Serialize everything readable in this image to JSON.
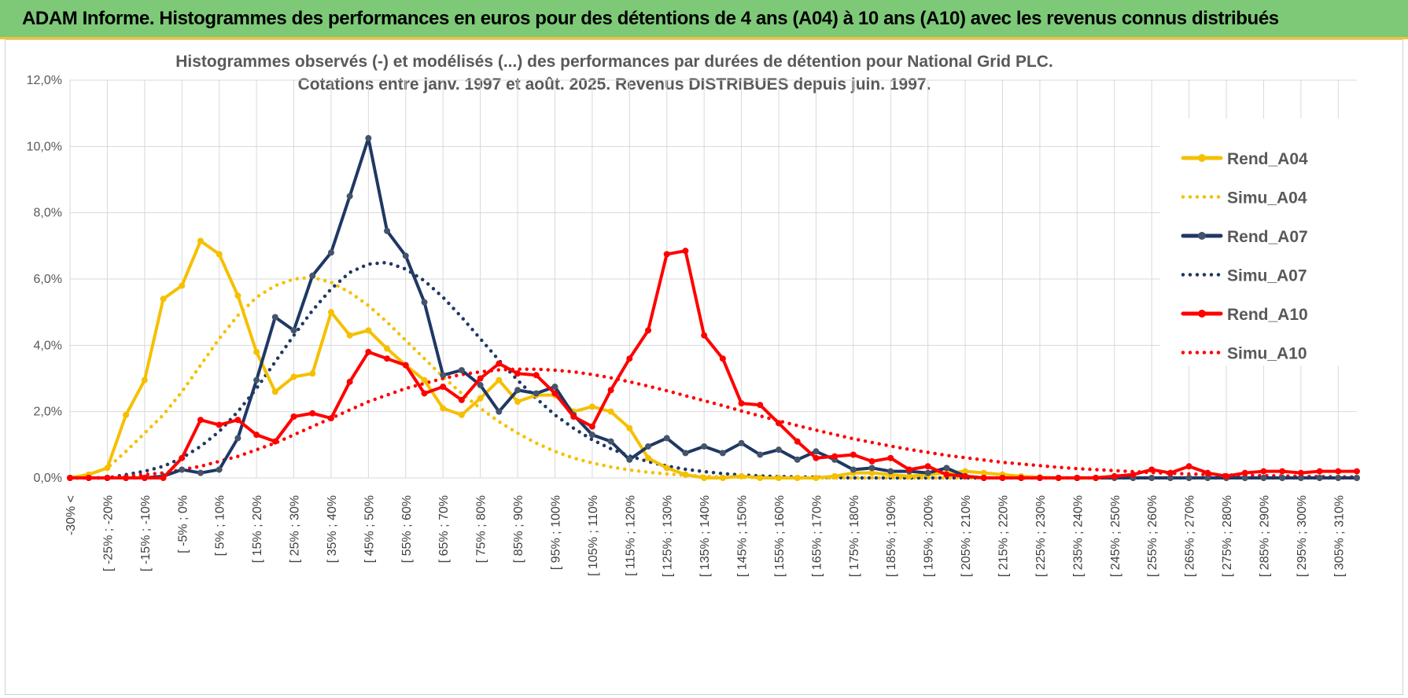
{
  "header": {
    "title": "ADAM Informe. Histogrammes des performances en euros pour des détentions de 4 ans (A04) à 10 ans (A10) avec les revenus connus distribués"
  },
  "chart_data": {
    "type": "line",
    "title": "Histogrammes observés (-) et modélisés (...) des performances par durées de détention pour National Grid PLC.",
    "subtitle": "Cotations entre janv. 1997 et août. 2025. Revenus DISTRIBUES depuis juin. 1997.",
    "xlabel": "",
    "ylabel": "",
    "ylim": [
      0,
      12
    ],
    "yticks": [
      0,
      2,
      4,
      6,
      8,
      10,
      12
    ],
    "ytick_labels": [
      "0,0%",
      "2,0%",
      "4,0%",
      "6,0%",
      "8,0%",
      "10,0%",
      "12,0%"
    ],
    "grid": true,
    "legend_position": "right",
    "x_tick_labels": [
      "-30% <",
      "[ -25% ; -20%",
      "[ -15% ; -10%",
      "[ -5% ; 0%",
      "[ 5% ; 10%",
      "[ 15% ; 20%",
      "[ 25% ; 30%",
      "[ 35% ; 40%",
      "[ 45% ; 50%",
      "[ 55% ; 60%",
      "[ 65% ; 70%",
      "[ 75% ; 80%",
      "[ 85% ; 90%",
      "[ 95% ; 100%",
      "[ 105% ; 110%",
      "[ 115% ; 120%",
      "[ 125% ; 130%",
      "[ 135% ; 140%",
      "[ 145% ; 150%",
      "[ 155% ; 160%",
      "[ 165% ; 170%",
      "[ 175% ; 180%",
      "[ 185% ; 190%",
      "[ 195% ; 200%",
      "[ 205% ; 210%",
      "[ 215% ; 220%",
      "[ 225% ; 230%",
      "[ 235% ; 240%",
      "[ 245% ; 250%",
      "[ 255% ; 260%",
      "[ 265% ; 270%",
      "[ 275% ; 280%",
      "[ 285% ; 290%",
      "[ 295% ; 300%",
      "[ 305% ; 310%"
    ],
    "n_categories": 70,
    "series": [
      {
        "name": "Rend_A04",
        "style": "solid",
        "color": "#f5c000",
        "values": [
          0.0,
          0.1,
          0.3,
          1.9,
          2.95,
          5.4,
          5.8,
          7.15,
          6.75,
          5.5,
          3.8,
          2.6,
          3.05,
          3.15,
          5.0,
          4.3,
          4.45,
          3.9,
          3.4,
          2.95,
          2.1,
          1.9,
          2.4,
          2.95,
          2.3,
          2.5,
          2.5,
          2.0,
          2.15,
          2.0,
          1.5,
          0.6,
          0.3,
          0.1,
          0.0,
          0.0,
          0.05,
          0.0,
          0.0,
          0.0,
          0.0,
          0.05,
          0.15,
          0.15,
          0.1,
          0.05,
          0.1,
          0.15,
          0.2,
          0.15,
          0.1,
          0.05,
          0.02,
          0.0,
          0.0,
          0.0,
          0.05,
          0.0,
          0.0,
          0.0,
          0.0,
          0.0,
          0.0,
          0.0,
          0.0,
          0.0,
          0.0,
          0.0,
          0.0,
          0.0
        ]
      },
      {
        "name": "Simu_A04",
        "style": "dotted",
        "color": "#f5c000",
        "values": [
          0.0,
          0.1,
          0.3,
          0.8,
          1.35,
          1.9,
          2.6,
          3.4,
          4.2,
          4.9,
          5.45,
          5.8,
          6.0,
          6.05,
          5.9,
          5.6,
          5.2,
          4.7,
          4.15,
          3.6,
          3.05,
          2.55,
          2.1,
          1.7,
          1.35,
          1.05,
          0.8,
          0.6,
          0.45,
          0.33,
          0.24,
          0.17,
          0.12,
          0.08,
          0.05,
          0.03,
          0.02,
          0.01,
          0.0,
          0.0,
          0.0,
          0.0,
          0.0,
          0.0,
          0.0,
          0.0,
          0.0,
          0.0,
          0.0,
          0.0,
          0.0,
          0.0,
          0.0,
          0.0,
          0.0,
          0.0,
          0.0,
          0.0,
          0.0,
          0.0,
          0.0,
          0.0,
          0.0,
          0.0,
          0.0,
          0.0,
          0.0,
          0.0,
          0.0,
          0.0
        ]
      },
      {
        "name": "Rend_A07",
        "style": "solid",
        "color": "#1f3864",
        "values": [
          0.0,
          0.0,
          0.0,
          0.0,
          0.0,
          0.05,
          0.25,
          0.15,
          0.25,
          1.2,
          2.95,
          4.85,
          4.45,
          6.1,
          6.8,
          8.5,
          10.25,
          7.45,
          6.7,
          5.3,
          3.1,
          3.25,
          2.8,
          2.0,
          2.65,
          2.55,
          2.75,
          1.9,
          1.3,
          1.1,
          0.55,
          0.95,
          1.2,
          0.75,
          0.95,
          0.75,
          1.05,
          0.7,
          0.85,
          0.55,
          0.8,
          0.55,
          0.25,
          0.3,
          0.2,
          0.2,
          0.15,
          0.3,
          0.05,
          0.0,
          0.0,
          0.0,
          0.0,
          0.0,
          0.0,
          0.0,
          0.0,
          0.0,
          0.0,
          0.0,
          0.0,
          0.0,
          0.0,
          0.0,
          0.0,
          0.0,
          0.0,
          0.0,
          0.0,
          0.0
        ]
      },
      {
        "name": "Simu_A07",
        "style": "dotted",
        "color": "#1f3864",
        "values": [
          0.0,
          0.0,
          0.0,
          0.1,
          0.2,
          0.35,
          0.6,
          0.95,
          1.4,
          2.0,
          2.7,
          3.5,
          4.3,
          5.05,
          5.7,
          6.2,
          6.45,
          6.5,
          6.3,
          5.95,
          5.45,
          4.85,
          4.2,
          3.55,
          2.95,
          2.4,
          1.9,
          1.5,
          1.15,
          0.88,
          0.66,
          0.49,
          0.36,
          0.26,
          0.19,
          0.13,
          0.09,
          0.06,
          0.04,
          0.03,
          0.02,
          0.01,
          0.0,
          0.0,
          0.0,
          0.0,
          0.0,
          0.0,
          0.0,
          0.0,
          0.0,
          0.0,
          0.0,
          0.0,
          0.0,
          0.0,
          0.0,
          0.0,
          0.0,
          0.0,
          0.0,
          0.0,
          0.0,
          0.0,
          0.0,
          0.0,
          0.0,
          0.0,
          0.0,
          0.0
        ]
      },
      {
        "name": "Rend_A10",
        "style": "solid",
        "color": "#ff0000",
        "values": [
          0.0,
          0.0,
          0.0,
          0.0,
          0.0,
          0.0,
          0.6,
          1.75,
          1.6,
          1.75,
          1.3,
          1.1,
          1.85,
          1.95,
          1.8,
          2.9,
          3.8,
          3.6,
          3.4,
          2.55,
          2.75,
          2.35,
          3.0,
          3.45,
          3.15,
          3.1,
          2.55,
          1.85,
          1.55,
          2.65,
          3.6,
          4.45,
          6.75,
          6.85,
          4.3,
          3.6,
          2.25,
          2.2,
          1.65,
          1.1,
          0.6,
          0.65,
          0.7,
          0.5,
          0.6,
          0.25,
          0.35,
          0.1,
          0.05,
          0.0,
          0.0,
          0.0,
          0.0,
          0.0,
          0.0,
          0.0,
          0.05,
          0.1,
          0.25,
          0.15,
          0.35,
          0.15,
          0.05,
          0.15,
          0.2,
          0.2,
          0.15,
          0.2,
          0.2,
          0.2
        ]
      },
      {
        "name": "Simu_A10",
        "style": "dotted",
        "color": "#ff0000",
        "values": [
          0.0,
          0.0,
          0.0,
          0.05,
          0.1,
          0.15,
          0.25,
          0.35,
          0.5,
          0.65,
          0.85,
          1.05,
          1.3,
          1.55,
          1.8,
          2.05,
          2.3,
          2.5,
          2.7,
          2.85,
          3.0,
          3.12,
          3.2,
          3.26,
          3.28,
          3.28,
          3.25,
          3.2,
          3.12,
          3.02,
          2.9,
          2.77,
          2.63,
          2.48,
          2.33,
          2.18,
          2.02,
          1.87,
          1.72,
          1.58,
          1.44,
          1.31,
          1.18,
          1.07,
          0.96,
          0.86,
          0.77,
          0.68,
          0.61,
          0.54,
          0.47,
          0.42,
          0.37,
          0.32,
          0.28,
          0.25,
          0.22,
          0.19,
          0.16,
          0.14,
          0.12,
          0.1,
          0.09,
          0.08,
          0.07,
          0.06,
          0.05,
          0.04,
          0.03,
          0.03
        ]
      }
    ]
  }
}
